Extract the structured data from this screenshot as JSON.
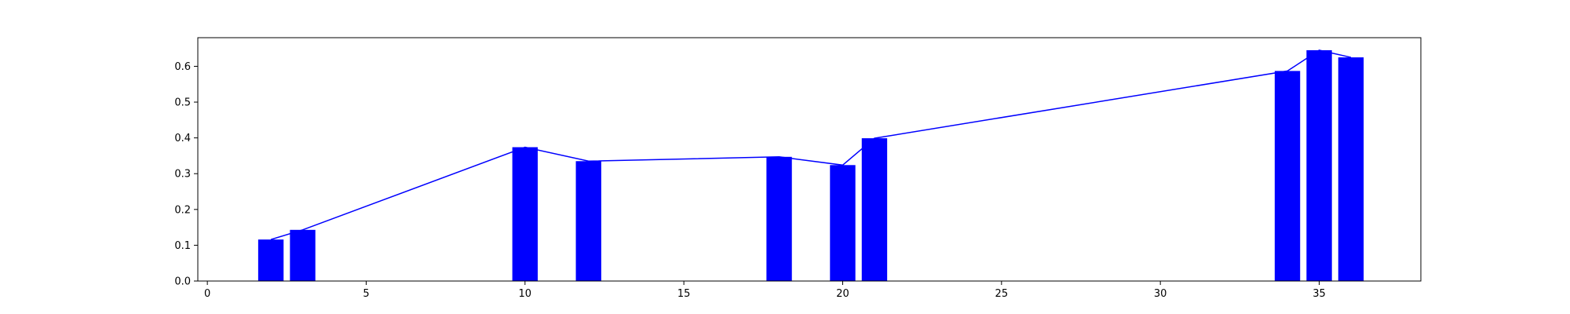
{
  "chart_data": {
    "type": "bar",
    "title": "",
    "xlabel": "",
    "ylabel": "",
    "x": [
      2,
      3,
      10,
      12,
      18,
      20,
      21,
      34,
      35,
      36
    ],
    "values": [
      0.116,
      0.143,
      0.374,
      0.335,
      0.347,
      0.324,
      0.399,
      0.587,
      0.645,
      0.625
    ],
    "overlay_line": {
      "x": [
        2,
        3,
        10,
        12,
        18,
        20,
        21,
        34,
        35,
        36
      ],
      "y": [
        0.116,
        0.143,
        0.374,
        0.335,
        0.347,
        0.324,
        0.399,
        0.587,
        0.645,
        0.625
      ]
    },
    "xlim": [
      -0.3,
      38.2
    ],
    "ylim": [
      0,
      0.68
    ],
    "xticks": [
      0,
      5,
      10,
      15,
      20,
      25,
      30,
      35
    ],
    "yticks": [
      0.0,
      0.1,
      0.2,
      0.3,
      0.4,
      0.5,
      0.6
    ],
    "xtick_labels": [
      "0",
      "5",
      "10",
      "15",
      "20",
      "25",
      "30",
      "35"
    ],
    "ytick_labels": [
      "0.0",
      "0.1",
      "0.2",
      "0.3",
      "0.4",
      "0.5",
      "0.6"
    ],
    "bar_width": 0.8,
    "grid": false,
    "legend": "none",
    "colors": {
      "bars": "#0000ff",
      "line": "#0000ff",
      "axes": "#000000",
      "background": "#ffffff"
    }
  }
}
